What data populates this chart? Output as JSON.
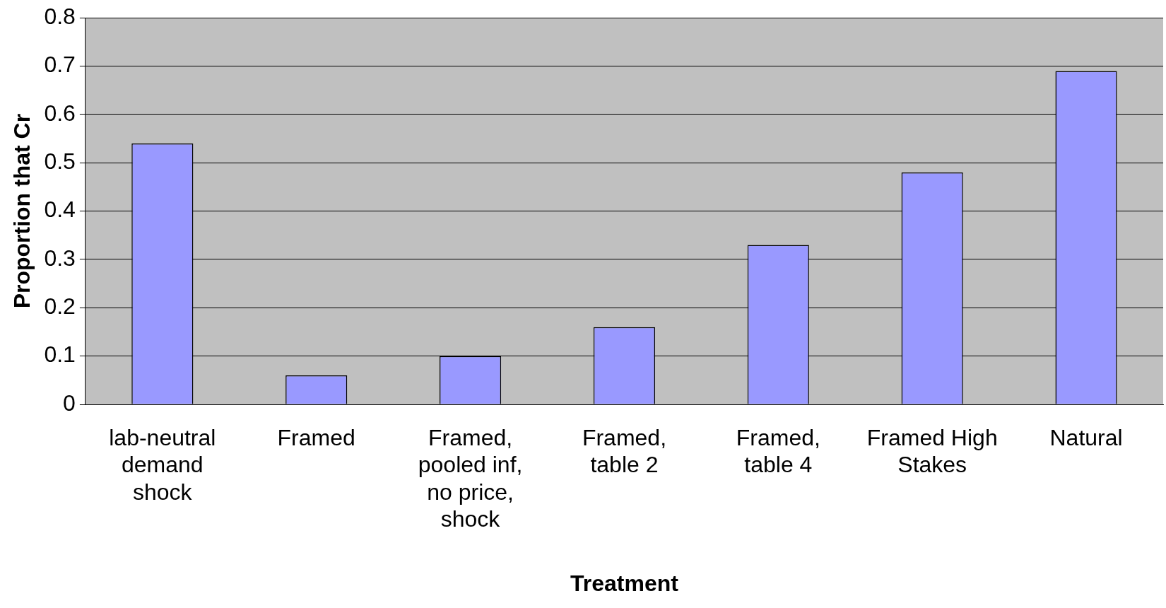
{
  "chart_data": {
    "type": "bar",
    "xlabel": "Treatment",
    "ylabel": "Proportion that Cr",
    "categories": [
      "lab-neutral demand shock",
      "Framed",
      "Framed, pooled inf, no price, shock",
      "Framed, table 2",
      "Framed, table 4",
      "Framed High Stakes",
      "Natural"
    ],
    "values": [
      0.54,
      0.06,
      0.1,
      0.16,
      0.33,
      0.48,
      0.69
    ],
    "color": "#9999ff",
    "ylim": [
      0,
      0.8
    ],
    "yticks": [
      0,
      0.1,
      0.2,
      0.3,
      0.4,
      0.5,
      0.6,
      0.7,
      0.8
    ],
    "grid": "y",
    "legend": false
  }
}
